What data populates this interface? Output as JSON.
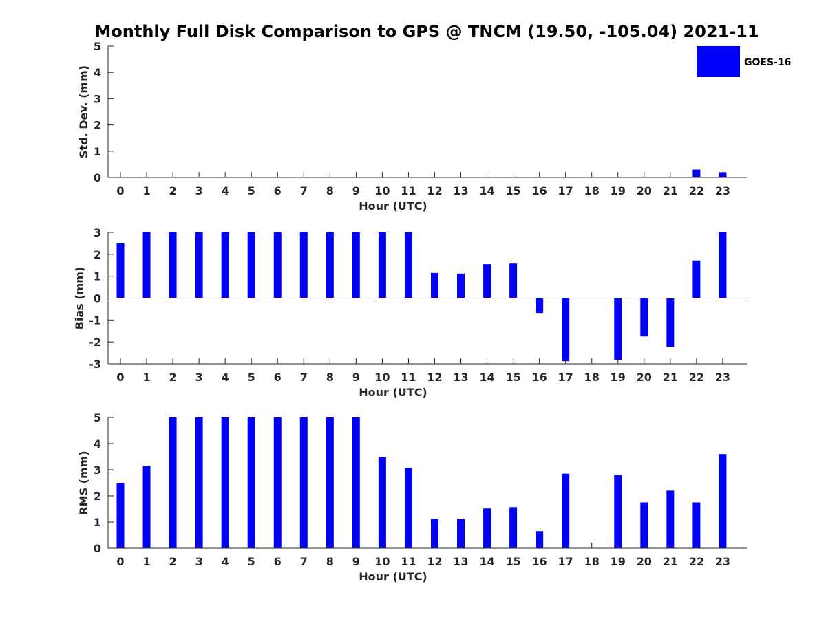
{
  "title": "Monthly Full Disk Comparison to GPS @ TNCM (19.50, -105.04) 2021-11",
  "colors": {
    "bar": "#0000ff",
    "axis": "#262626",
    "background": "#ffffff"
  },
  "legend": {
    "label": "GOES-16",
    "placement": "top-right"
  },
  "chart_data": [
    {
      "type": "bar",
      "name": "std",
      "xlabel": "Hour (UTC)",
      "ylabel": "Std. Dev. (mm)",
      "ylim": [
        0,
        5
      ],
      "yticks": [
        0,
        1,
        2,
        3,
        4,
        5
      ],
      "categories": [
        "0",
        "1",
        "2",
        "3",
        "4",
        "5",
        "6",
        "7",
        "8",
        "9",
        "10",
        "11",
        "12",
        "13",
        "14",
        "15",
        "16",
        "17",
        "18",
        "19",
        "20",
        "21",
        "22",
        "23"
      ],
      "values": [
        0,
        0,
        0,
        0,
        0,
        0,
        0,
        0,
        0,
        0,
        0,
        0,
        0,
        0,
        0,
        0,
        0,
        0,
        0,
        0,
        0,
        0,
        0.3,
        0.2
      ]
    },
    {
      "type": "bar",
      "name": "bias",
      "xlabel": "Hour (UTC)",
      "ylabel": "Bias (mm)",
      "ylim": [
        -3,
        3
      ],
      "yticks": [
        -3,
        -2,
        -1,
        0,
        1,
        2,
        3
      ],
      "categories": [
        "0",
        "1",
        "2",
        "3",
        "4",
        "5",
        "6",
        "7",
        "8",
        "9",
        "10",
        "11",
        "12",
        "13",
        "14",
        "15",
        "16",
        "17",
        "18",
        "19",
        "20",
        "21",
        "22",
        "23"
      ],
      "values": [
        2.5,
        3,
        3,
        3,
        3,
        3,
        3,
        3,
        3,
        3,
        3,
        3,
        1.15,
        1.12,
        1.55,
        1.58,
        -0.68,
        -2.88,
        0,
        -2.82,
        -1.75,
        -2.22,
        1.72,
        3
      ]
    },
    {
      "type": "bar",
      "name": "rms",
      "xlabel": "Hour (UTC)",
      "ylabel": "RMS (mm)",
      "ylim": [
        0,
        5
      ],
      "yticks": [
        0,
        1,
        2,
        3,
        4,
        5
      ],
      "categories": [
        "0",
        "1",
        "2",
        "3",
        "4",
        "5",
        "6",
        "7",
        "8",
        "9",
        "10",
        "11",
        "12",
        "13",
        "14",
        "15",
        "16",
        "17",
        "18",
        "19",
        "20",
        "21",
        "22",
        "23"
      ],
      "values": [
        2.5,
        3.15,
        5,
        5,
        5,
        5,
        5,
        5,
        5,
        5,
        3.48,
        3.08,
        1.13,
        1.12,
        1.52,
        1.57,
        0.65,
        2.85,
        0,
        2.8,
        1.75,
        2.2,
        1.75,
        3.6
      ]
    }
  ]
}
